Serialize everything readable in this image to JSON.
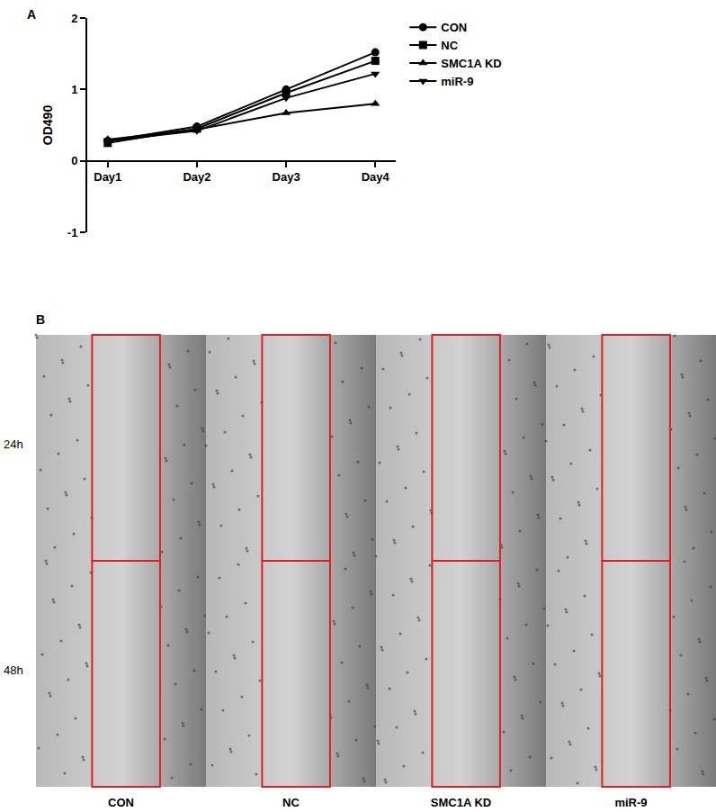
{
  "chart_data": {
    "type": "line",
    "title": "A",
    "ylabel": "OD490",
    "categories": [
      "Day1",
      "Day2",
      "Day3",
      "Day4"
    ],
    "series": [
      {
        "name": "CON",
        "color": "#000000",
        "marker": "circle",
        "values": [
          0.28,
          0.48,
          1.0,
          1.52
        ]
      },
      {
        "name": "NC",
        "color": "#000000",
        "marker": "square",
        "values": [
          0.25,
          0.45,
          0.95,
          1.4
        ]
      },
      {
        "name": "SMC1A KD",
        "color": "#000000",
        "marker": "triangle-up",
        "values": [
          0.3,
          0.44,
          0.67,
          0.8
        ]
      },
      {
        "name": "miR-9",
        "color": "#000000",
        "marker": "triangle-down",
        "values": [
          0.28,
          0.42,
          0.88,
          1.22
        ]
      }
    ],
    "ylim": [
      -1,
      2
    ],
    "yticks": [
      -1,
      0,
      1,
      2
    ],
    "grid": false,
    "legend": "upper right"
  },
  "panel_b": {
    "label": "B",
    "rows": [
      "24h",
      "48h"
    ],
    "columns": [
      "CON",
      "NC",
      "SMC1A KD",
      "miR-9"
    ]
  }
}
